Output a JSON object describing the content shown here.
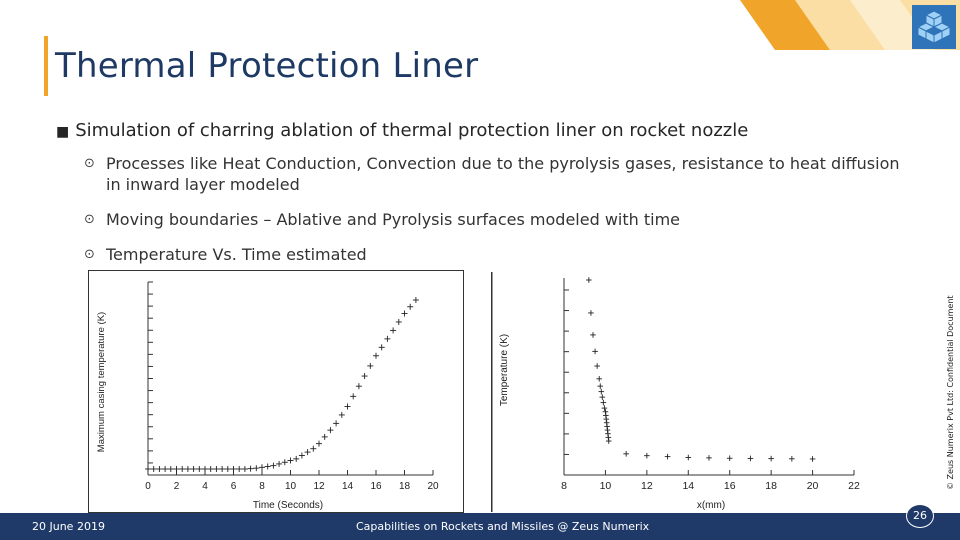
{
  "slide": {
    "title": "Thermal Protection Liner",
    "main_bullet": "Simulation of charring ablation of thermal protection liner on rocket nozzle",
    "sub_bullets": [
      "Processes like Heat Conduction, Convection due to the pyrolysis gases, resistance to heat diffusion in inward layer modeled",
      "Moving boundaries – Ablative and Pyrolysis surfaces modeled with time",
      "Temperature Vs. Time estimated"
    ],
    "footer_date": "20 June 2019",
    "footer_caption": "Capabilities on Rockets and Missiles @ Zeus Numerix",
    "page_number": "26",
    "confidential": "© Zeus Numerix Pvt Ltd: Confidential Document",
    "colors": {
      "title": "#1e3a64",
      "accent": "#f0a42a",
      "footer": "#1f3a68",
      "logo": "#3d8fd6"
    }
  },
  "chart_data": [
    {
      "type": "scatter",
      "xlabel": "Time (Seconds)",
      "ylabel": "Maximum casing temperature (K)",
      "xlim": [
        0,
        20
      ],
      "x_ticks": [
        "0",
        "2",
        "4",
        "6",
        "8",
        "10",
        "12",
        "14",
        "16",
        "18",
        "20"
      ],
      "marker": "+",
      "grid": false,
      "series": [
        {
          "x": [
            0,
            0.4,
            0.8,
            1.2,
            1.6,
            2,
            2.4,
            2.8,
            3.2,
            3.6,
            4,
            4.4,
            4.8,
            5.2,
            5.6,
            6,
            6.4,
            6.8,
            7.2,
            7.6,
            8,
            8.4,
            8.8,
            9.2,
            9.6,
            10,
            10.4,
            10.8,
            11.2,
            11.6,
            12,
            12.4,
            12.8,
            13.2,
            13.6,
            14,
            14.4,
            14.8,
            15.2,
            15.6,
            16,
            16.4,
            16.8,
            17.2,
            17.6,
            18,
            18.4,
            18.8
          ],
          "y": [
            0,
            0,
            0,
            0,
            0,
            0,
            0,
            0,
            0,
            0,
            0,
            0,
            0,
            0,
            0,
            0,
            0,
            0,
            0.002,
            0.005,
            0.01,
            0.015,
            0.02,
            0.03,
            0.04,
            0.05,
            0.06,
            0.08,
            0.1,
            0.12,
            0.15,
            0.19,
            0.23,
            0.27,
            0.32,
            0.37,
            0.43,
            0.49,
            0.55,
            0.61,
            0.67,
            0.72,
            0.77,
            0.82,
            0.87,
            0.92,
            0.96,
            1.0
          ]
        }
      ]
    },
    {
      "type": "scatter",
      "xlabel": "x(mm)",
      "ylabel": "Temperature (K)",
      "xlim": [
        8,
        22
      ],
      "x_ticks": [
        "8",
        "10",
        "12",
        "14",
        "16",
        "18",
        "20",
        "22"
      ],
      "marker": "+",
      "grid": false,
      "series": [
        {
          "x": [
            9.2,
            9.3,
            9.4,
            9.5,
            9.6,
            9.7,
            9.75,
            9.8,
            9.85,
            9.9,
            9.95,
            10.0,
            10.02,
            10.04,
            10.06,
            10.08,
            10.1,
            10.12,
            10.14,
            10.16,
            11.0,
            12.0,
            13.0,
            14.0,
            15.0,
            16.0,
            17.0,
            18.0,
            19.0,
            20.0
          ],
          "y": [
            1.0,
            0.82,
            0.7,
            0.61,
            0.53,
            0.46,
            0.42,
            0.39,
            0.36,
            0.33,
            0.3,
            0.28,
            0.26,
            0.24,
            0.22,
            0.2,
            0.18,
            0.16,
            0.14,
            0.12,
            0.05,
            0.04,
            0.035,
            0.03,
            0.028,
            0.026,
            0.025,
            0.024,
            0.023,
            0.022
          ]
        }
      ]
    }
  ]
}
